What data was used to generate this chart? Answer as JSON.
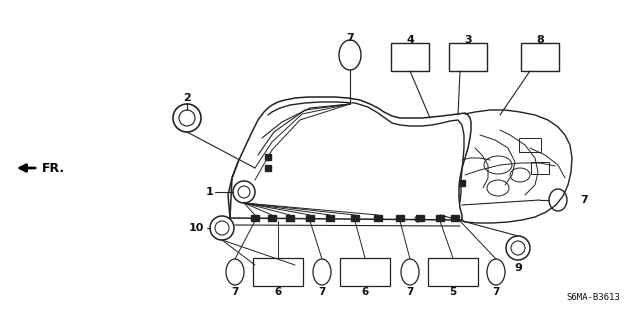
{
  "part_label_text": "S6MA-B3613",
  "background_color": "#ffffff",
  "line_color": "#222222",
  "text_color": "#111111",
  "fig_width": 6.4,
  "fig_height": 3.19,
  "dpi": 100
}
